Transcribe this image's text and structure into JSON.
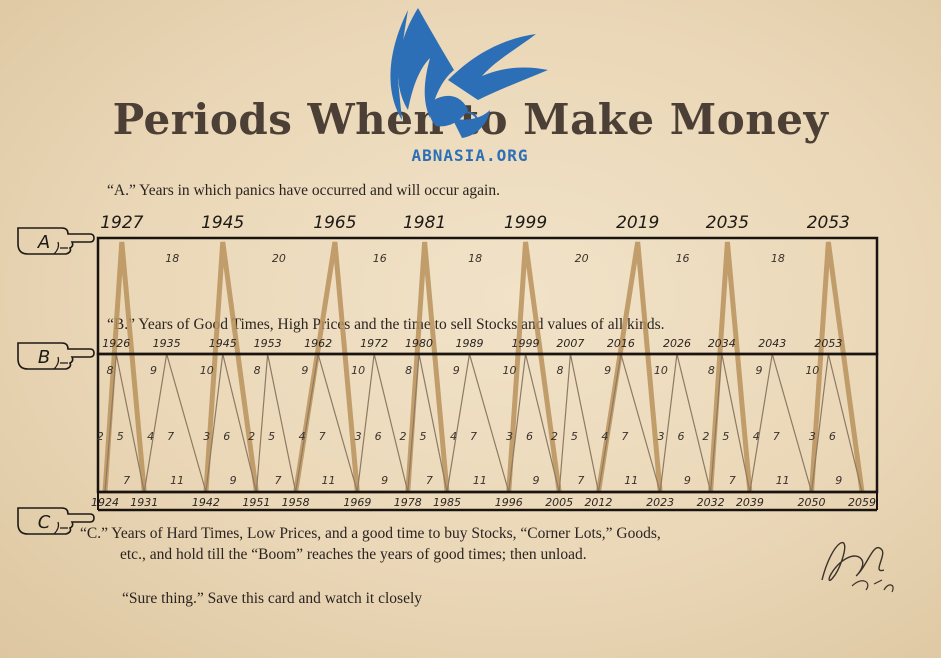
{
  "title": "Periods When to Make Money",
  "watermark": {
    "text": "ABNASIA.ORG",
    "color": "#2c6fb7"
  },
  "line_a": "“A.” Years in which panics have occurred and will occur again.",
  "line_b": "“B.” Years of Good Times, High Prices and the time to sell Stocks and values of all kinds.",
  "line_c1": "“C.”   Years of Hard Times, Low Prices, and a good time to buy Stocks, “Corner Lots,” Goods,",
  "line_c2": "etc., and hold till  the “Boom” reaches the years of good times; then unload.",
  "sure_thing": "“Sure thing.” Save this card and watch it closely",
  "hands": [
    "A",
    "B",
    "C"
  ],
  "signature": "Samuel Benner 1875",
  "colors": {
    "bar": "#b8925c",
    "thin": "#8e7a63",
    "border": "#1a1410"
  },
  "a_years": [
    "1927",
    "1945",
    "1965",
    "1981",
    "1999",
    "2019",
    "2035",
    "2053"
  ],
  "a_intervals": [
    "18",
    "20",
    "16",
    "18",
    "20",
    "16",
    "18"
  ],
  "b_years": [
    "1926",
    "1935",
    "1945",
    "1953",
    "1962",
    "1972",
    "1980",
    "1989",
    "1999",
    "2007",
    "2016",
    "2026",
    "2034",
    "2043",
    "2053"
  ],
  "c_years": [
    "1924",
    "1931",
    "1942",
    "1951",
    "1958",
    "1969",
    "1978",
    "1985",
    "1996",
    "2005",
    "2012",
    "2023",
    "2032",
    "2039",
    "2050",
    "2059"
  ],
  "upper_numbers": [
    "8",
    "9",
    "10",
    "8",
    "9",
    "10",
    "8",
    "9",
    "10",
    "8",
    "9",
    "10",
    "8",
    "9",
    "10"
  ],
  "middle_numbers": [
    "2",
    "5",
    "4",
    "7",
    "3",
    "6",
    "2",
    "5",
    "4",
    "7",
    "3",
    "6",
    "2",
    "5",
    "4",
    "7",
    "3",
    "6",
    "2",
    "5",
    "4",
    "7",
    "3",
    "6",
    "2",
    "5",
    "4",
    "7",
    "3",
    "6"
  ],
  "lower_numbers": [
    "7",
    "11",
    "9",
    "7",
    "11",
    "9",
    "7",
    "11",
    "9",
    "7",
    "11",
    "9",
    "7",
    "11",
    "9"
  ]
}
